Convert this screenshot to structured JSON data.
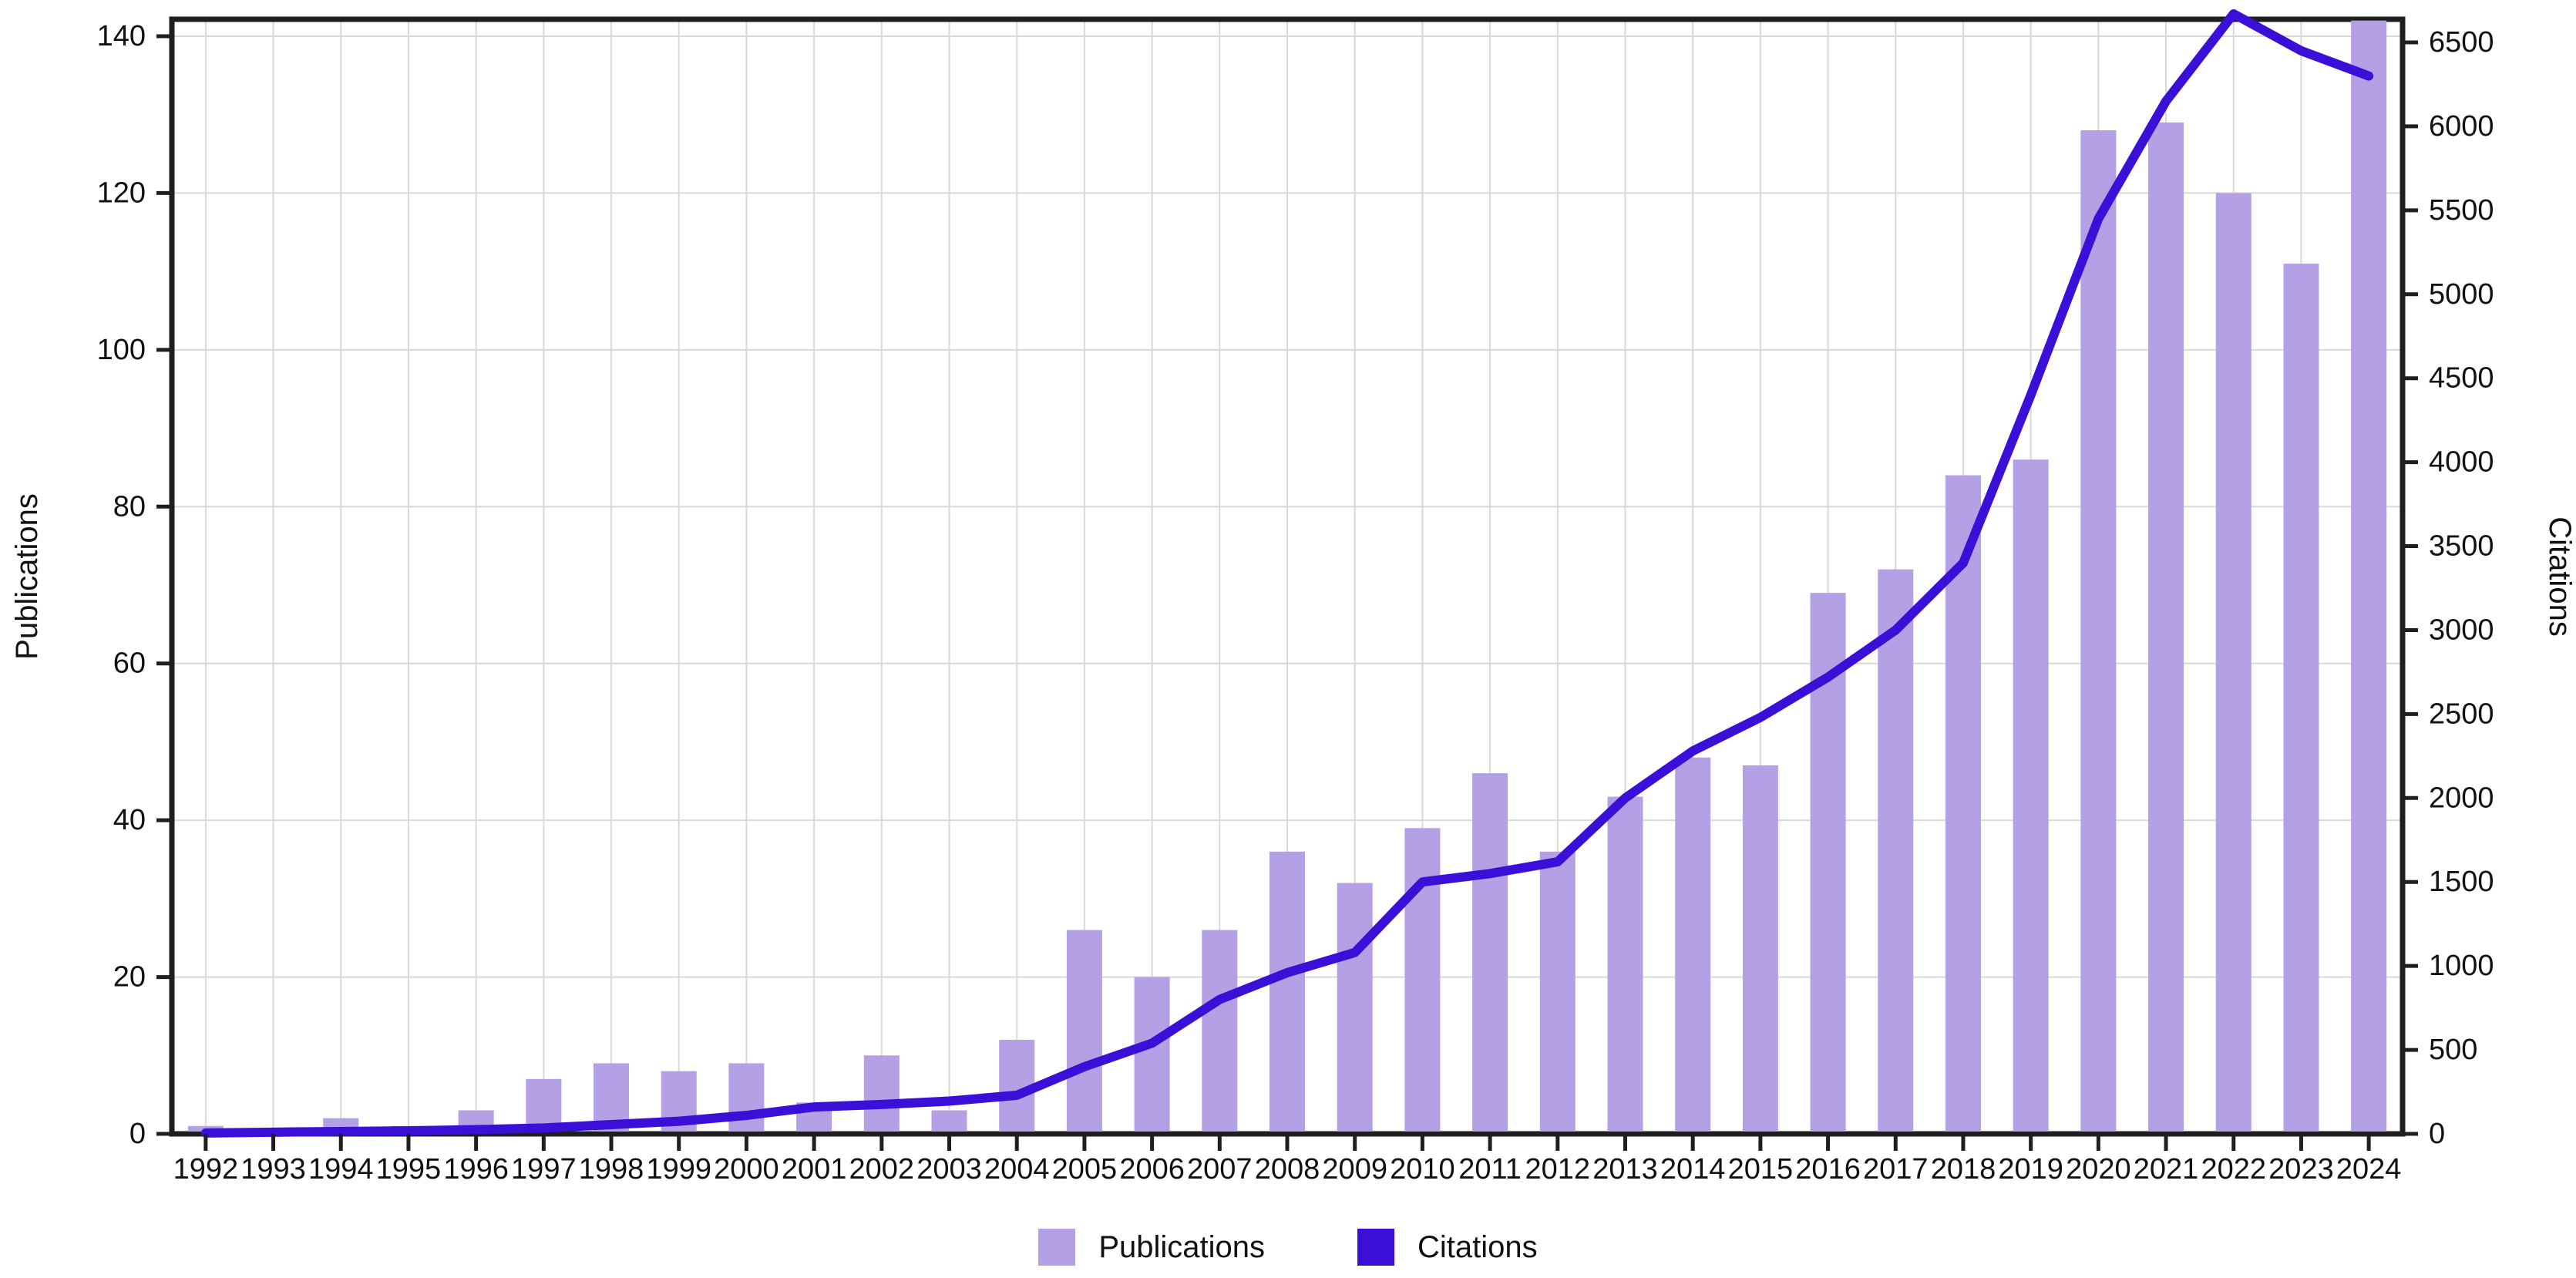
{
  "chart_data": {
    "type": "bar",
    "subtype": "bar+line-dual-axis",
    "title": "",
    "categories": [
      1992,
      1993,
      1994,
      1995,
      1996,
      1997,
      1998,
      1999,
      2000,
      2001,
      2002,
      2003,
      2004,
      2005,
      2006,
      2007,
      2008,
      2009,
      2010,
      2011,
      2012,
      2013,
      2014,
      2015,
      2016,
      2017,
      2018,
      2019,
      2020,
      2021,
      2022,
      2023,
      2024
    ],
    "series": [
      {
        "name": "Publications",
        "type": "bar",
        "axis": "left",
        "color": "#b4a0e4",
        "values": [
          1,
          0,
          2,
          1,
          3,
          7,
          9,
          8,
          9,
          4,
          10,
          3,
          12,
          26,
          20,
          26,
          36,
          32,
          39,
          46,
          36,
          43,
          48,
          47,
          69,
          72,
          84,
          86,
          128,
          129,
          120,
          111,
          142
        ]
      },
      {
        "name": "Citations",
        "type": "line",
        "axis": "right",
        "color": "#3a10d8",
        "values": [
          5,
          10,
          14,
          18,
          25,
          35,
          55,
          75,
          110,
          160,
          175,
          195,
          230,
          400,
          540,
          800,
          960,
          1080,
          1500,
          1550,
          1620,
          2000,
          2280,
          2480,
          2720,
          3000,
          3400,
          4400,
          5450,
          6150,
          6670,
          6450,
          6300
        ]
      }
    ],
    "left_axis": {
      "label": "Publications",
      "ticks": [
        0,
        20,
        40,
        60,
        80,
        100,
        120,
        140
      ],
      "range": [
        0,
        140
      ]
    },
    "right_axis": {
      "label": "Citations",
      "ticks": [
        0,
        500,
        1000,
        1500,
        2000,
        2500,
        3000,
        3500,
        4000,
        4500,
        5000,
        5500,
        6000,
        6500
      ],
      "range": [
        0,
        6500
      ]
    },
    "x_axis": {
      "tick_labels": [
        "1992",
        "1993",
        "1994",
        "1995",
        "1996",
        "1997",
        "1998",
        "1999",
        "2000",
        "2001",
        "2002",
        "2003",
        "2004",
        "2005",
        "2006",
        "2007",
        "2008",
        "2009",
        "2010",
        "2011",
        "2012",
        "2013",
        "2014",
        "2015",
        "2016",
        "2017",
        "2018",
        "2019",
        "2020",
        "2021",
        "2022",
        "2023",
        "2024"
      ]
    },
    "legend": {
      "position": "bottom-center",
      "entries": [
        {
          "label": "Publications",
          "color": "#b4a0e4"
        },
        {
          "label": "Citations",
          "color": "#3a10d8"
        }
      ]
    },
    "grid": true,
    "grid_color": "#d9d9d9",
    "frame_color": "#1f1f1f",
    "background_color": "#ffffff"
  }
}
